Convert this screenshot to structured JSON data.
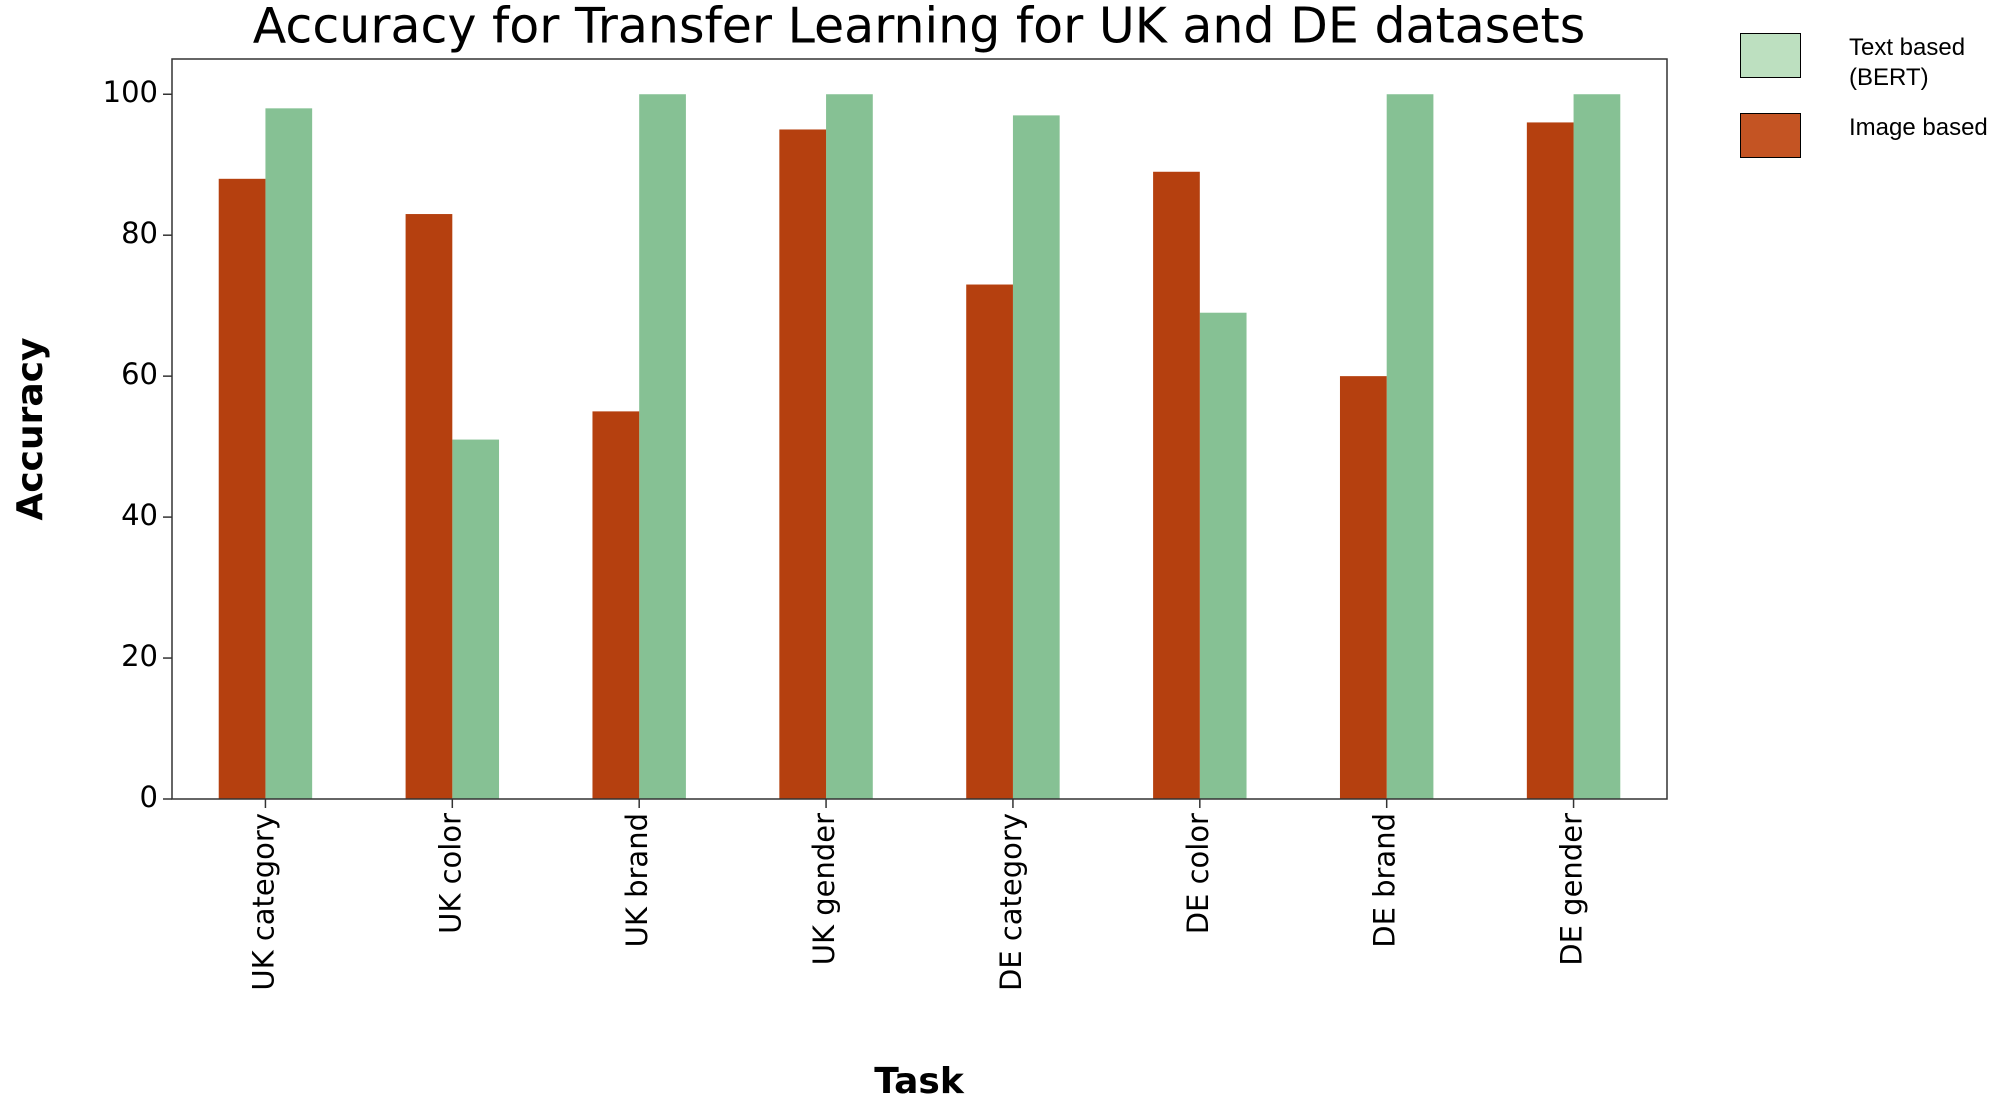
{
  "chart_data": {
    "type": "bar",
    "title": "Accuracy for Transfer Learning for UK and DE datasets",
    "xlabel": "Task",
    "ylabel": "Accuracy",
    "categories": [
      "UK category",
      "UK color",
      "UK brand",
      "UK gender",
      "DE category",
      "DE color",
      "DE brand",
      "DE gender"
    ],
    "series": [
      {
        "name": "Text based (BERT)",
        "color": "#86c194",
        "legend_color": "#bde0c0",
        "values": [
          98,
          51,
          100,
          100,
          97,
          69,
          100,
          100
        ]
      },
      {
        "name": "Image based",
        "color": "#b5400f",
        "legend_color": "#c45423",
        "values": [
          88,
          83,
          55,
          95,
          73,
          89,
          60,
          96
        ]
      }
    ],
    "ylim": [
      0,
      105
    ],
    "yticks": [
      0,
      20,
      40,
      60,
      80,
      100
    ],
    "grid": false,
    "legend": "outside right"
  }
}
